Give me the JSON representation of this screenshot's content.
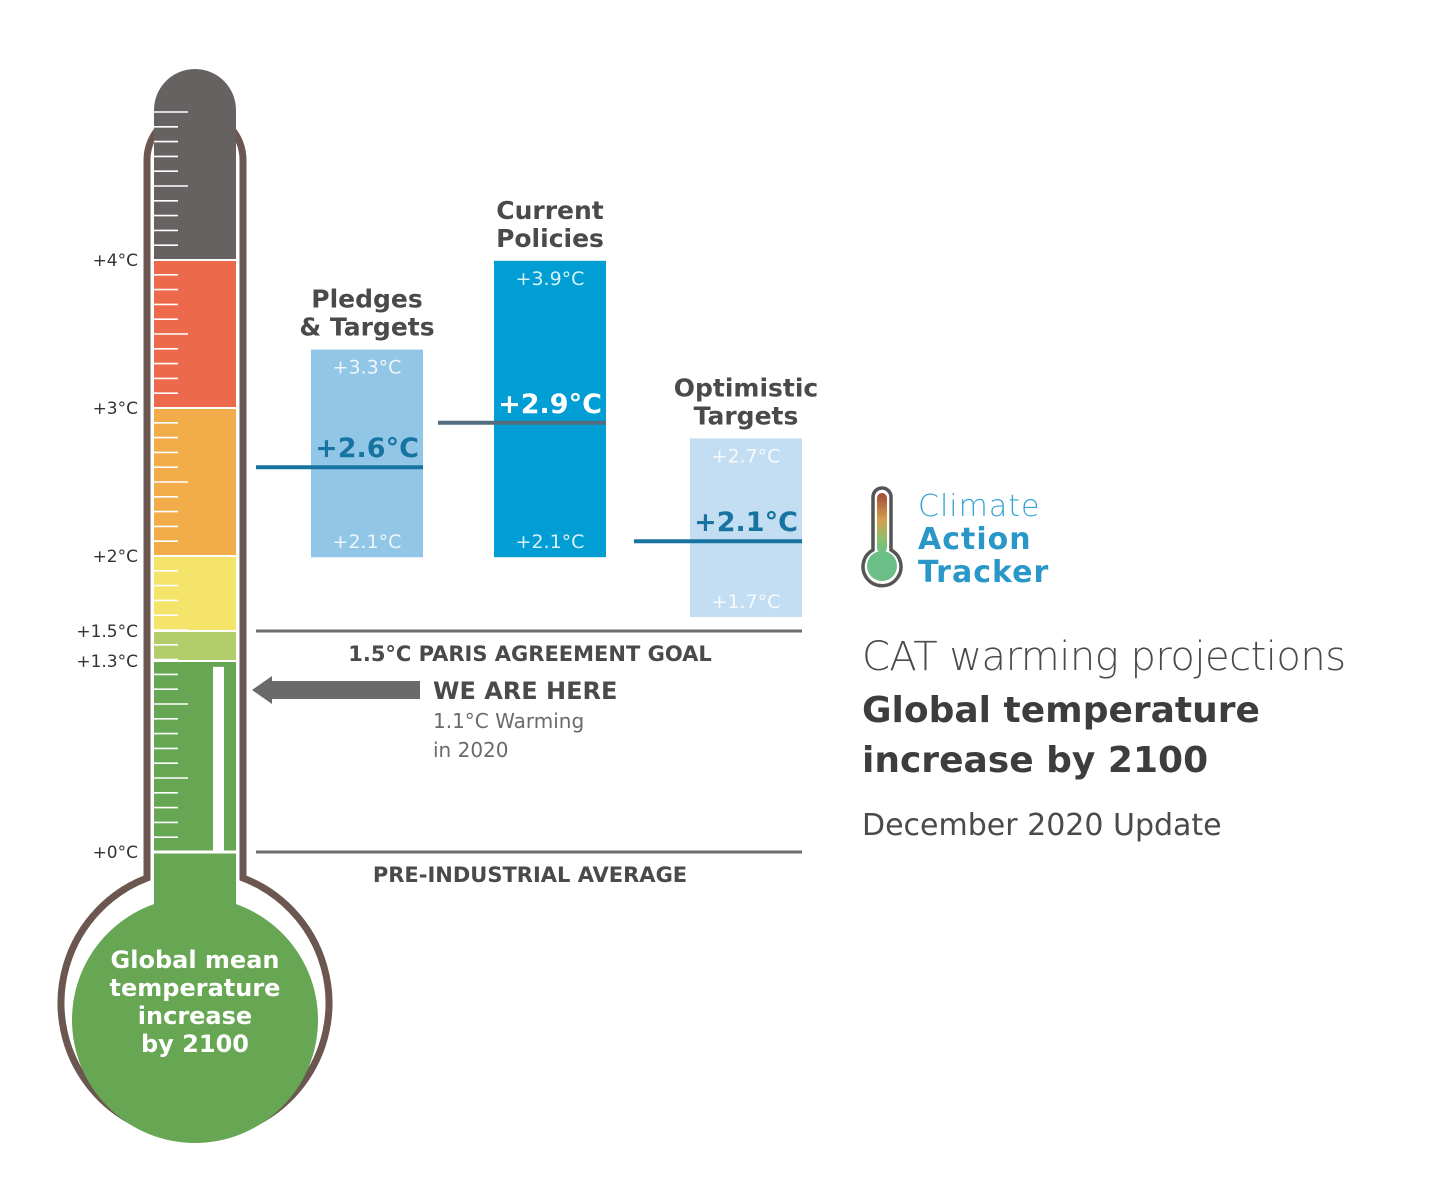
{
  "chart_data": {
    "type": "thermometer-range",
    "title": "CAT warming projections",
    "title_bold": "Global temperature increase by 2100",
    "subtitle": "December 2020 Update",
    "bulb_label": [
      "Global mean",
      "temperature",
      "increase",
      "by 2100"
    ],
    "axis_ticks": [
      {
        "value": 4.0,
        "label": "+4°C"
      },
      {
        "value": 3.0,
        "label": "+3°C"
      },
      {
        "value": 2.0,
        "label": "+2°C"
      },
      {
        "value": 1.5,
        "label": "+1.5°C"
      },
      {
        "value": 1.3,
        "label": "+1.3°C"
      },
      {
        "value": 0.0,
        "label": "+0°C"
      }
    ],
    "ylim": [
      0,
      5
    ],
    "color_bands": [
      {
        "from": 4.0,
        "to": 5.0,
        "color": "#666262"
      },
      {
        "from": 3.0,
        "to": 4.0,
        "color": "#ec694b"
      },
      {
        "from": 2.0,
        "to": 3.0,
        "color": "#f2ac4a"
      },
      {
        "from": 1.5,
        "to": 2.0,
        "color": "#f4e46a"
      },
      {
        "from": 1.3,
        "to": 1.5,
        "color": "#b3cd6b"
      },
      {
        "from": 0.0,
        "to": 1.3,
        "color": "#67a652"
      }
    ],
    "scenarios": [
      {
        "name_lines": [
          "Pledges",
          "& Targets"
        ],
        "low": 2.1,
        "high": 3.3,
        "median": 2.6,
        "low_label": "+2.1°C",
        "high_label": "+3.3°C",
        "median_label": "+2.6°C",
        "color": "#92c6e6",
        "median_color": "#1774a0",
        "text_color": "#ffffff"
      },
      {
        "name_lines": [
          "Current",
          "Policies"
        ],
        "low": 2.1,
        "high": 3.9,
        "median": 2.9,
        "low_label": "+2.1°C",
        "high_label": "+3.9°C",
        "median_label": "+2.9°C",
        "color": "#009ed5",
        "median_color": "#516d7f",
        "text_color": "#ffffff"
      },
      {
        "name_lines": [
          "Optimistic",
          "Targets"
        ],
        "low": 1.7,
        "high": 2.7,
        "median": 2.1,
        "low_label": "+1.7°C",
        "high_label": "+2.7°C",
        "median_label": "+2.1°C",
        "color": "#c3def2",
        "median_color": "#1774a0",
        "text_color": "#ffffff"
      }
    ],
    "reference_lines": [
      {
        "value": 1.5,
        "label": "1.5°C PARIS AGREEMENT GOAL"
      },
      {
        "value": 0.0,
        "label": "PRE-INDUSTRIAL AVERAGE"
      }
    ],
    "current_marker": {
      "value": 1.1,
      "heading": "WE ARE HERE",
      "detail_lines": [
        "1.1°C Warming",
        "in 2020"
      ]
    }
  },
  "logo": {
    "lines": [
      "Climate",
      "Action",
      "Tracker"
    ]
  },
  "colors": {
    "outline": "#6b5650",
    "text_dark": "#4a4a4a",
    "line_gray": "#6e6e6e",
    "arrow_gray": "#6a6a6a"
  }
}
